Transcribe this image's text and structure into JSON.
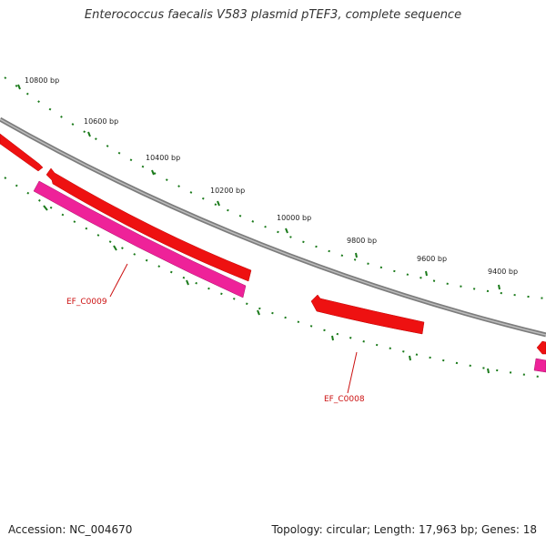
{
  "title": "Enterococcus faecalis V583 plasmid pTEF3, complete sequence",
  "footer": {
    "accession": "Accession: NC_004670",
    "summary": "Topology: circular; Length: 17,963 bp; Genes: 18"
  },
  "ruler_labels": [
    "10800 bp",
    "10600 bp",
    "10400 bp",
    "10200 bp",
    "10000 bp",
    "9800 bp",
    "9600 bp",
    "9400 bp"
  ],
  "gene_labels": [
    "EF_C0009",
    "EF_C0008"
  ],
  "colors": {
    "backbone": "#8a8a8a",
    "forward_gene": "#ee1111",
    "reverse_gene": "#ee2299",
    "ticks": "#1a7a1a",
    "label": "#cc1111"
  }
}
